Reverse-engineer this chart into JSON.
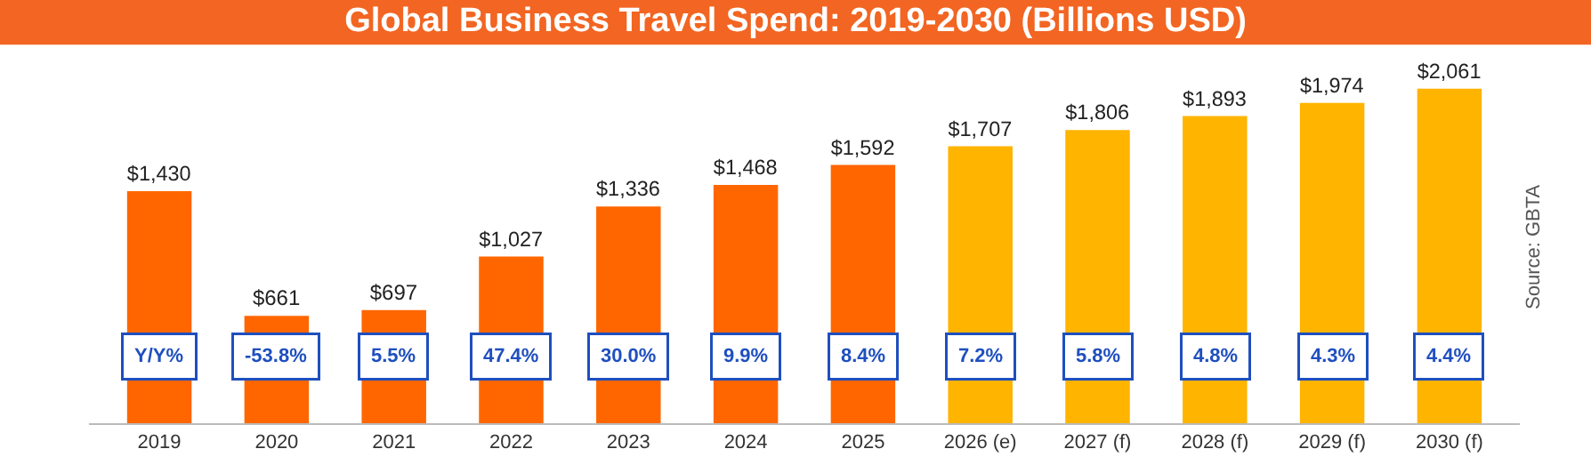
{
  "chart_data": {
    "type": "bar",
    "title": "Global Business Travel Spend: 2019-2030 (Billions USD)",
    "categories": [
      "2019",
      "2020",
      "2021",
      "2022",
      "2023",
      "2024",
      "2025",
      "2026 (e)",
      "2027 (f)",
      "2028 (f)",
      "2029 (f)",
      "2030 (f)"
    ],
    "values": [
      1430,
      661,
      697,
      1027,
      1336,
      1468,
      1592,
      1707,
      1806,
      1893,
      1974,
      2061
    ],
    "colors": [
      "#ff6600",
      "#ff6600",
      "#ff6600",
      "#ff6600",
      "#ff6600",
      "#ff6600",
      "#ff6600",
      "#ffb400",
      "#ffb400",
      "#ffb400",
      "#ffb400",
      "#ffb400"
    ],
    "value_labels": [
      "$1,430",
      "$661",
      "$697",
      "$1,027",
      "$1,336",
      "$1,468",
      "$1,592",
      "$1,707",
      "$1,806",
      "$1,893",
      "$1,974",
      "$2,061"
    ],
    "annotations": [
      "Y/Y%",
      "-53.8%",
      "5.5%",
      "47.4%",
      "30.0%",
      "9.9%",
      "8.4%",
      "7.2%",
      "5.8%",
      "4.8%",
      "4.3%",
      "4.4%",
      "Source: GBTA"
    ],
    "legend": false
  }
}
